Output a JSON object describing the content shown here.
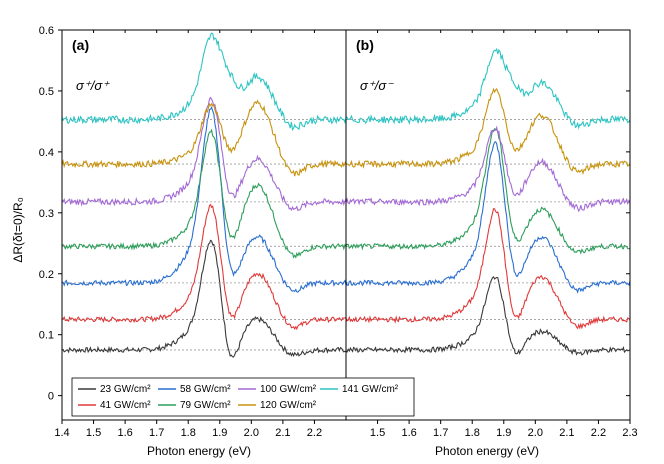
{
  "chart_data": {
    "type": "line",
    "xlabel": "Photon energy (eV)",
    "ylabel": "ΔR(δt=0)/R₀",
    "ylim": [
      -0.04,
      0.6
    ],
    "yticks": [
      "0",
      "0.1",
      "0.2",
      "0.3",
      "0.4",
      "0.5",
      "0.6"
    ],
    "panels": [
      {
        "label": "(a)",
        "polarization": "σ⁺/σ⁺",
        "xlim": [
          1.4,
          2.3
        ],
        "xticks": [
          "1.4",
          "1.5",
          "1.6",
          "1.7",
          "1.8",
          "1.9",
          "2.0",
          "2.1",
          "2.2"
        ]
      },
      {
        "label": "(b)",
        "polarization": "σ⁺/σ⁻",
        "xlim": [
          1.4,
          2.3
        ],
        "xticks": [
          "1.5",
          "1.6",
          "1.7",
          "1.8",
          "1.9",
          "2.0",
          "2.1",
          "2.2",
          "2.3"
        ]
      }
    ],
    "series": [
      {
        "name": "23 GW/cm²",
        "color": "#3a3a3a",
        "offset": 0.075,
        "a": {
          "peak1": 0.15,
          "dip": -0.05,
          "peak2": 0.05,
          "noise": 0.004
        },
        "b": {
          "peak1": 0.1,
          "dip": -0.03,
          "peak2": 0.03,
          "noise": 0.004
        }
      },
      {
        "name": "41 GW/cm²",
        "color": "#e03a3a",
        "offset": 0.125,
        "a": {
          "peak1": 0.155,
          "dip": -0.04,
          "peak2": 0.075,
          "noise": 0.004
        },
        "b": {
          "peak1": 0.15,
          "dip": -0.04,
          "peak2": 0.07,
          "noise": 0.004
        }
      },
      {
        "name": "58 GW/cm²",
        "color": "#2a6fd1",
        "offset": 0.185,
        "a": {
          "peak1": 0.235,
          "dip": -0.04,
          "peak2": 0.075,
          "noise": 0.004
        },
        "b": {
          "peak1": 0.19,
          "dip": -0.035,
          "peak2": 0.075,
          "noise": 0.004
        }
      },
      {
        "name": "79 GW/cm²",
        "color": "#2e9e5b",
        "offset": 0.245,
        "a": {
          "peak1": 0.155,
          "dip": -0.035,
          "peak2": 0.1,
          "noise": 0.004
        },
        "b": {
          "peak1": 0.16,
          "dip": -0.03,
          "peak2": 0.06,
          "noise": 0.004
        }
      },
      {
        "name": "100 GW/cm²",
        "color": "#a36ad6",
        "offset": 0.318,
        "a": {
          "peak1": 0.14,
          "dip": -0.03,
          "peak2": 0.07,
          "noise": 0.005
        },
        "b": {
          "peak1": 0.1,
          "dip": -0.02,
          "peak2": 0.065,
          "noise": 0.005
        }
      },
      {
        "name": "120 GW/cm²",
        "color": "#c8930e",
        "offset": 0.38,
        "a": {
          "peak1": 0.08,
          "dip": -0.01,
          "peak2": 0.1,
          "noise": 0.005
        },
        "b": {
          "peak1": 0.1,
          "dip": -0.01,
          "peak2": 0.08,
          "noise": 0.005
        }
      },
      {
        "name": "141 GW/cm²",
        "color": "#2ec4c4",
        "offset": 0.453,
        "a": {
          "peak1": 0.11,
          "dip": 0.04,
          "peak2": 0.07,
          "noise": 0.006
        },
        "b": {
          "peak1": 0.09,
          "dip": 0.03,
          "peak2": 0.06,
          "noise": 0.006
        }
      }
    ],
    "legend_rows": [
      [
        "23 GW/cm²",
        "58 GW/cm²",
        "100 GW/cm²",
        "141 GW/cm²"
      ],
      [
        "41 GW/cm²",
        "79 GW/cm²",
        "120 GW/cm²"
      ]
    ],
    "legend_position": "bottom-left",
    "reference_lines": "dotted gray baseline per series"
  }
}
